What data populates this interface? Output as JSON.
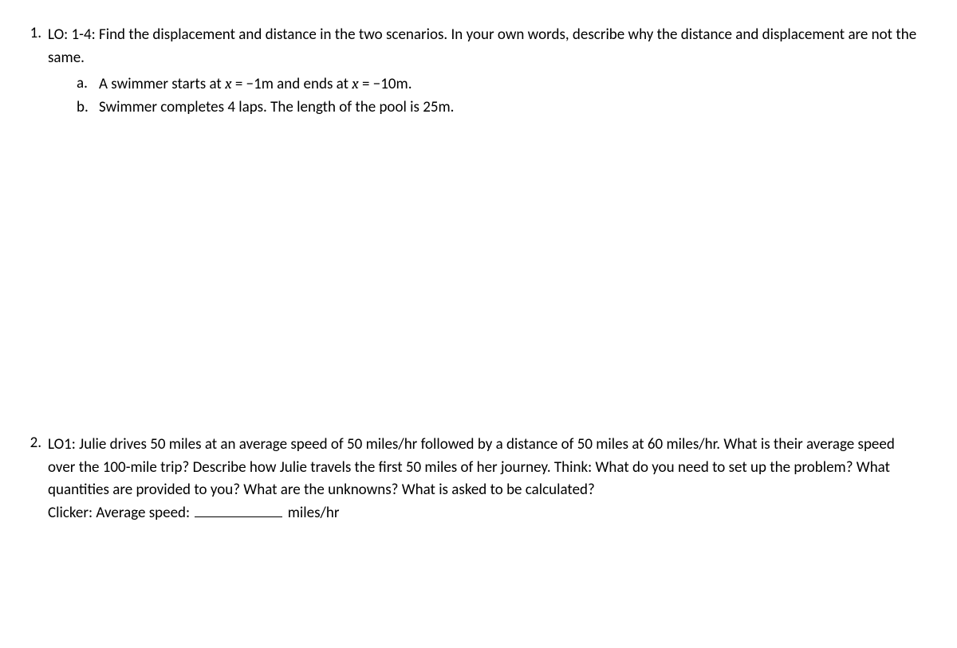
{
  "q1": {
    "number": "1.",
    "text_part1": "LO: 1-4: Find the displacement and distance in the two scenarios. In your own words, describe why the distance and displacement are not the same.",
    "sub_a": {
      "letter": "a.",
      "pre": "A swimmer starts at ",
      "var1": "x",
      "mid1": " = −1m and ends at ",
      "var2": "x",
      "mid2": " = −10m."
    },
    "sub_b": {
      "letter": "b.",
      "text": "Swimmer completes 4 laps. The length of the pool is 25m."
    }
  },
  "q2": {
    "number": "2.",
    "line1": "LO1: Julie drives 50 miles at an average speed of 50 miles/hr followed by a distance of 50 miles at 60 miles/hr. What is their average speed over the 100-mile trip?  Describe how Julie travels the first 50 miles of her journey. Think: What do you need to set up the problem? What quantities are provided to you? What are the unknowns? What is asked to be calculated?",
    "clicker_label": "Clicker: Average speed: ",
    "clicker_unit": " miles/hr"
  }
}
